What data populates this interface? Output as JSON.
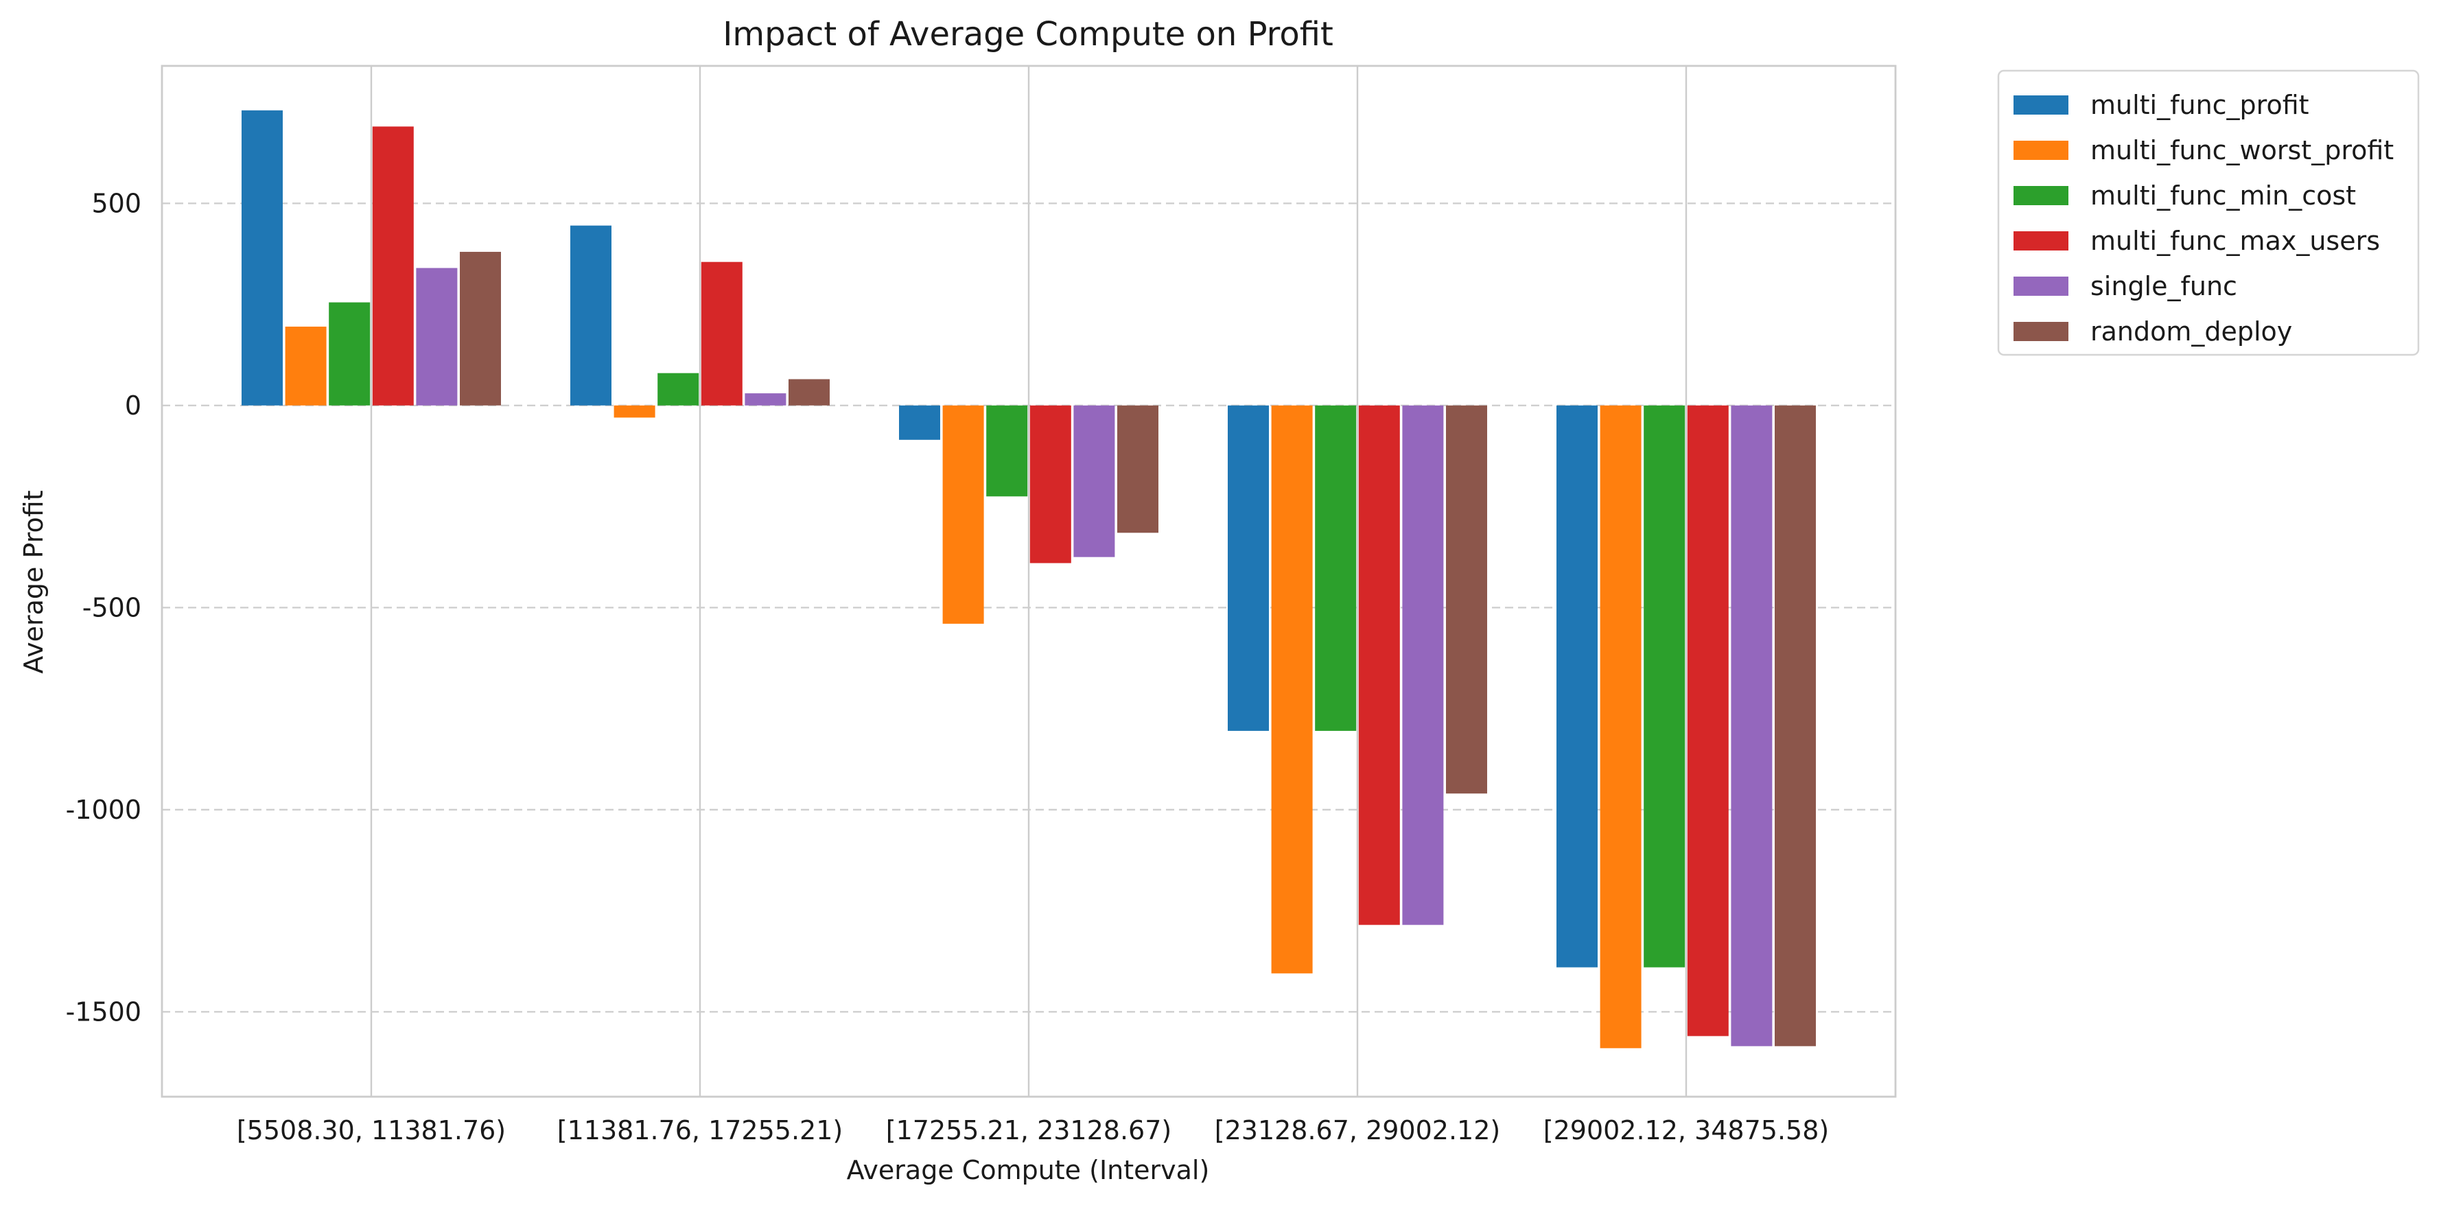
{
  "chart_data": {
    "type": "bar",
    "title": "Impact of Average Compute on Profit",
    "xlabel": "Average Compute (Interval)",
    "ylabel": "Average Profit",
    "categories": [
      "[5508.30, 11381.76)",
      "[11381.76, 17255.21)",
      "[17255.21, 23128.67)",
      "[23128.67, 29002.12)",
      "[29002.12, 34875.58)"
    ],
    "ylim": [
      -1710,
      840
    ],
    "yticks": [
      -1500,
      -1000,
      -500,
      0,
      500
    ],
    "ytick_labels": [
      "-1500",
      "-1000",
      "-500",
      "0",
      "500"
    ],
    "grid": {
      "x": true,
      "y": true,
      "y_style": "dashed"
    },
    "legend_position": "outside-top-right",
    "series": [
      {
        "name": "multi_func_profit",
        "color": "#1f77b4",
        "values": [
          730,
          445,
          -85,
          -805,
          -1390
        ]
      },
      {
        "name": "multi_func_worst_profit",
        "color": "#ff7f0e",
        "values": [
          195,
          -30,
          -540,
          -1405,
          -1590
        ]
      },
      {
        "name": "multi_func_min_cost",
        "color": "#2ca02c",
        "values": [
          255,
          80,
          -225,
          -805,
          -1390
        ]
      },
      {
        "name": "multi_func_max_users",
        "color": "#d62728",
        "values": [
          690,
          355,
          -390,
          -1285,
          -1560
        ]
      },
      {
        "name": "single_func",
        "color": "#9467bd",
        "values": [
          340,
          30,
          -375,
          -1285,
          -1585
        ]
      },
      {
        "name": "random_deploy",
        "color": "#8c564b",
        "values": [
          380,
          65,
          -315,
          -960,
          -1585
        ]
      }
    ]
  }
}
